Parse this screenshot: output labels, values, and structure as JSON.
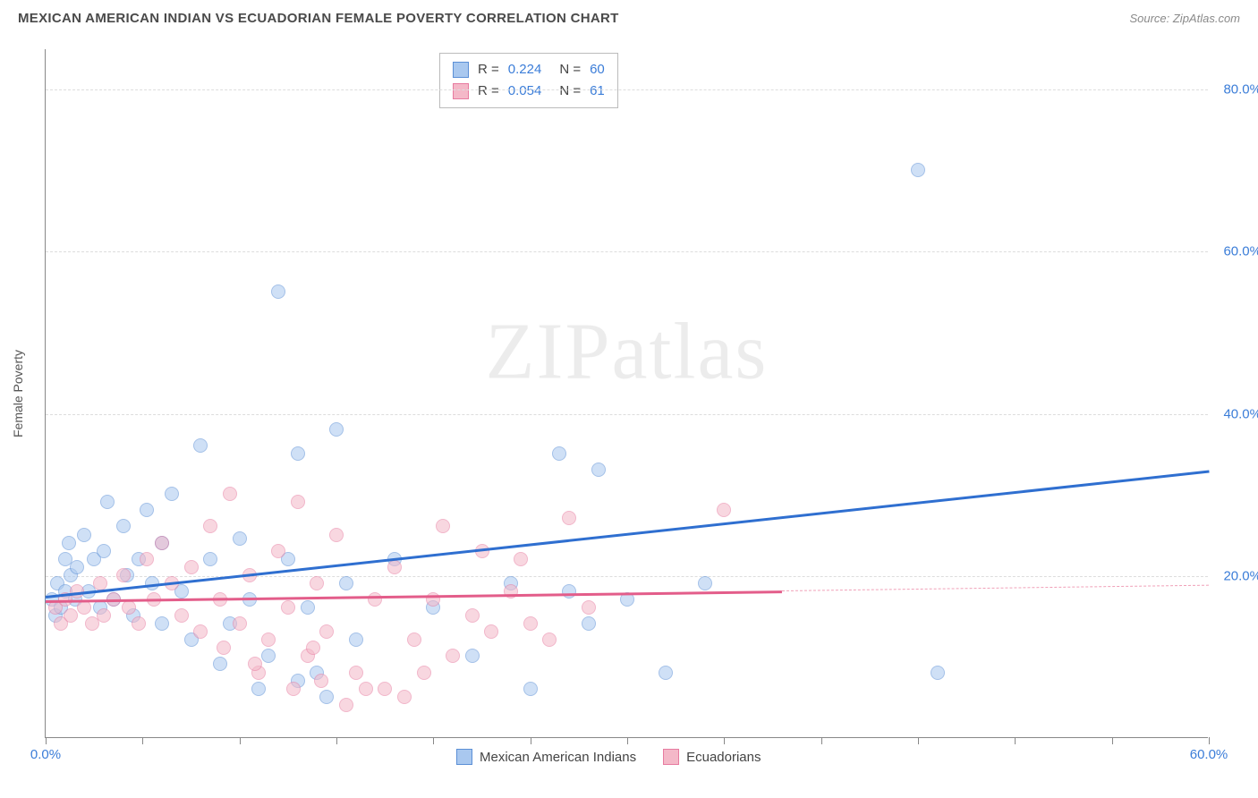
{
  "header": {
    "title": "MEXICAN AMERICAN INDIAN VS ECUADORIAN FEMALE POVERTY CORRELATION CHART",
    "source": "Source: ZipAtlas.com"
  },
  "watermark": "ZIPatlas",
  "chart": {
    "type": "scatter",
    "ylabel": "Female Poverty",
    "background_color": "#ffffff",
    "grid_color": "#dddddd",
    "axis_color": "#888888",
    "xlim": [
      0,
      60
    ],
    "ylim": [
      0,
      85
    ],
    "xtick_positions": [
      0,
      5,
      10,
      15,
      20,
      25,
      30,
      35,
      40,
      45,
      50,
      55,
      60
    ],
    "xtick_labels": {
      "0": "0.0%",
      "60": "60.0%"
    },
    "ytick_positions": [
      20,
      40,
      60,
      80
    ],
    "ytick_labels": {
      "20": "20.0%",
      "40": "40.0%",
      "60": "60.0%",
      "80": "80.0%"
    },
    "marker_radius": 8,
    "marker_opacity": 0.55,
    "series": [
      {
        "name": "Mexican American Indians",
        "color_fill": "#a9c8ef",
        "color_stroke": "#5b8fd6",
        "stats": {
          "R": "0.224",
          "N": "60"
        },
        "trend": {
          "x0": 0,
          "y0": 17.5,
          "x1": 60,
          "y1": 33,
          "color": "#2f6fd0",
          "width": 2.5
        },
        "points": [
          [
            0.3,
            17
          ],
          [
            0.5,
            15
          ],
          [
            0.6,
            19
          ],
          [
            0.8,
            16
          ],
          [
            1.0,
            22
          ],
          [
            1.0,
            18
          ],
          [
            1.2,
            24
          ],
          [
            1.3,
            20
          ],
          [
            1.5,
            17
          ],
          [
            1.6,
            21
          ],
          [
            2.0,
            25
          ],
          [
            2.2,
            18
          ],
          [
            2.5,
            22
          ],
          [
            2.8,
            16
          ],
          [
            3.0,
            23
          ],
          [
            3.2,
            29
          ],
          [
            3.5,
            17
          ],
          [
            4.0,
            26
          ],
          [
            4.2,
            20
          ],
          [
            4.5,
            15
          ],
          [
            4.8,
            22
          ],
          [
            5.2,
            28
          ],
          [
            5.5,
            19
          ],
          [
            6.0,
            24
          ],
          [
            6.5,
            30
          ],
          [
            7.0,
            18
          ],
          [
            8.0,
            36
          ],
          [
            8.5,
            22
          ],
          [
            9.0,
            9
          ],
          [
            10.0,
            24.5
          ],
          [
            10.5,
            17
          ],
          [
            11.0,
            6
          ],
          [
            12.0,
            55
          ],
          [
            12.5,
            22
          ],
          [
            13.0,
            35
          ],
          [
            13.5,
            16
          ],
          [
            14.0,
            8
          ],
          [
            15.0,
            38
          ],
          [
            15.5,
            19
          ],
          [
            16.0,
            12
          ],
          [
            18.0,
            22
          ],
          [
            20.0,
            16
          ],
          [
            22.0,
            10
          ],
          [
            24.0,
            19
          ],
          [
            25.0,
            6
          ],
          [
            26.5,
            35
          ],
          [
            27.0,
            18
          ],
          [
            28.0,
            14
          ],
          [
            28.5,
            33
          ],
          [
            30.0,
            17
          ],
          [
            32.0,
            8
          ],
          [
            34.0,
            19
          ],
          [
            45.0,
            70
          ],
          [
            46.0,
            8
          ],
          [
            6.0,
            14
          ],
          [
            7.5,
            12
          ],
          [
            9.5,
            14
          ],
          [
            11.5,
            10
          ],
          [
            13.0,
            7
          ],
          [
            14.5,
            5
          ]
        ]
      },
      {
        "name": "Ecuadorians",
        "color_fill": "#f4b8c8",
        "color_stroke": "#e77ba0",
        "stats": {
          "R": "0.054",
          "N": "61"
        },
        "trend": {
          "x0": 0,
          "y0": 17,
          "x1": 38,
          "y1": 18.2,
          "color": "#e35d8a",
          "width": 2.5
        },
        "trend_dash": {
          "x0": 38,
          "y0": 18.2,
          "x1": 60,
          "y1": 18.9,
          "color": "#f0a0b8"
        },
        "points": [
          [
            0.5,
            16
          ],
          [
            0.8,
            14
          ],
          [
            1.0,
            17
          ],
          [
            1.3,
            15
          ],
          [
            1.6,
            18
          ],
          [
            2.0,
            16
          ],
          [
            2.4,
            14
          ],
          [
            2.8,
            19
          ],
          [
            3.0,
            15
          ],
          [
            3.5,
            17
          ],
          [
            4.0,
            20
          ],
          [
            4.3,
            16
          ],
          [
            4.8,
            14
          ],
          [
            5.2,
            22
          ],
          [
            5.6,
            17
          ],
          [
            6.0,
            24
          ],
          [
            6.5,
            19
          ],
          [
            7.0,
            15
          ],
          [
            7.5,
            21
          ],
          [
            8.0,
            13
          ],
          [
            8.5,
            26
          ],
          [
            9.0,
            17
          ],
          [
            9.5,
            30
          ],
          [
            10.0,
            14
          ],
          [
            10.5,
            20
          ],
          [
            11.5,
            12
          ],
          [
            12.0,
            23
          ],
          [
            12.5,
            16
          ],
          [
            13.0,
            29
          ],
          [
            13.5,
            10
          ],
          [
            14.0,
            19
          ],
          [
            14.5,
            13
          ],
          [
            15.0,
            25
          ],
          [
            16.0,
            8
          ],
          [
            17.0,
            17
          ],
          [
            17.5,
            6
          ],
          [
            18.0,
            21
          ],
          [
            19.0,
            12
          ],
          [
            20.0,
            17
          ],
          [
            20.5,
            26
          ],
          [
            21.0,
            10
          ],
          [
            22.0,
            15
          ],
          [
            22.5,
            23
          ],
          [
            23.0,
            13
          ],
          [
            24.0,
            18
          ],
          [
            24.5,
            22
          ],
          [
            25.0,
            14
          ],
          [
            26.0,
            12
          ],
          [
            27.0,
            27
          ],
          [
            28.0,
            16
          ],
          [
            35.0,
            28
          ],
          [
            15.5,
            4
          ],
          [
            16.5,
            6
          ],
          [
            18.5,
            5
          ],
          [
            11.0,
            8
          ],
          [
            12.8,
            6
          ],
          [
            14.2,
            7
          ],
          [
            9.2,
            11
          ],
          [
            10.8,
            9
          ],
          [
            13.8,
            11
          ],
          [
            19.5,
            8
          ]
        ]
      }
    ],
    "legend": {
      "items": [
        {
          "label": "Mexican American Indians",
          "fill": "#a9c8ef",
          "stroke": "#5b8fd6"
        },
        {
          "label": "Ecuadorians",
          "fill": "#f4b8c8",
          "stroke": "#e77ba0"
        }
      ]
    }
  }
}
